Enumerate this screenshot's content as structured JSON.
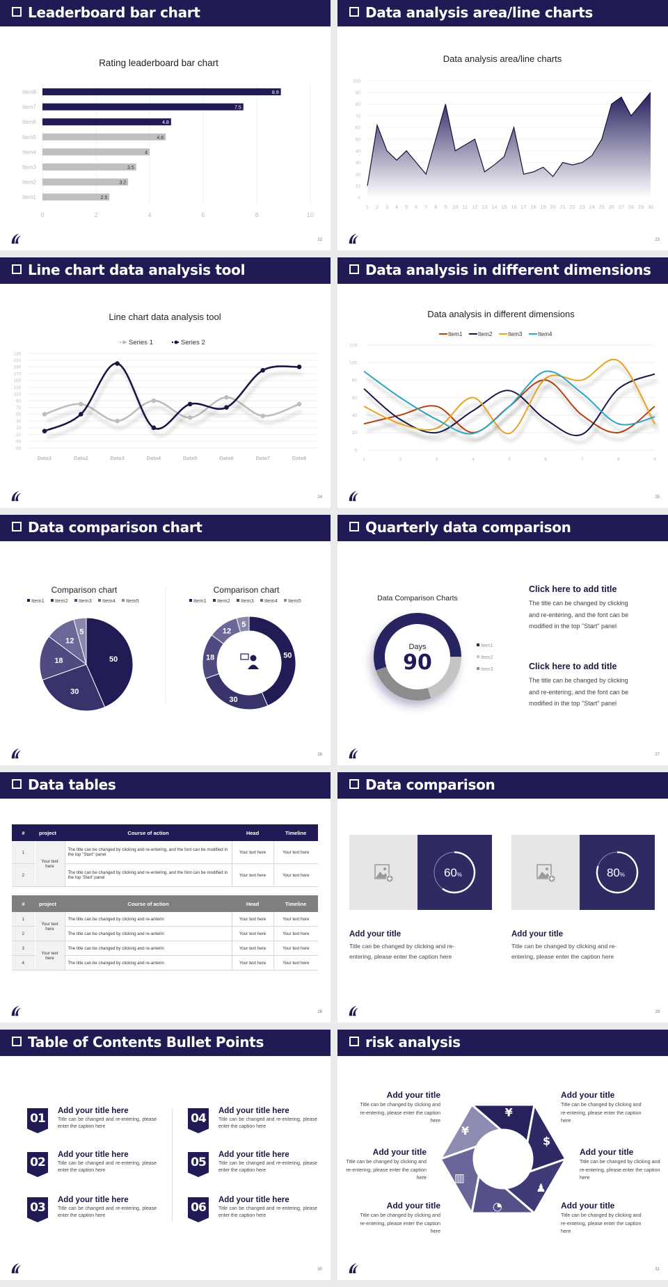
{
  "colors": {
    "navy": "#201b55",
    "gray_bar": "#bfbfbf",
    "box_navy": "#2e2a62",
    "box_gray": "#e6e4e5"
  },
  "slides": [
    {
      "title": "Leaderboard bar chart",
      "page": "22"
    },
    {
      "title": "Data analysis area/line charts",
      "page": "23"
    },
    {
      "title": "Line chart data analysis tool",
      "page": "24"
    },
    {
      "title": "Data analysis in different dimensions",
      "page": "25"
    },
    {
      "title": "Data comparison chart",
      "page": "26"
    },
    {
      "title": "Quarterly data comparison",
      "page": "27"
    },
    {
      "title": "Data tables",
      "page": "28"
    },
    {
      "title": "Data comparison",
      "page": "29"
    },
    {
      "title": "Table of Contents Bullet Points",
      "page": "30"
    },
    {
      "title": "risk analysis",
      "page": "31"
    }
  ],
  "chart_data": [
    {
      "type": "bar",
      "orientation": "horizontal",
      "title": "Rating leaderboard bar chart",
      "categories": [
        "Item1",
        "Item2",
        "Item3",
        "Item4",
        "Item5",
        "Item6",
        "Item7",
        "Item8"
      ],
      "values": [
        2.5,
        3.2,
        3.5,
        4,
        4.6,
        4.8,
        7.5,
        8.9
      ],
      "value_labels": [
        "2.5",
        "3.2",
        "3.5",
        "4",
        "4.6",
        "4.8",
        "7.5",
        "8.9"
      ],
      "colors": [
        "#bfbfbf",
        "#bfbfbf",
        "#bfbfbf",
        "#bfbfbf",
        "#bfbfbf",
        "#201b55",
        "#201b55",
        "#201b55"
      ],
      "xlim": [
        0,
        10
      ],
      "xticks": [
        "0",
        "2",
        "4",
        "6",
        "8",
        "10"
      ],
      "grid": true
    },
    {
      "type": "area",
      "title": "Data analysis area/line charts",
      "x": [
        "1",
        "2",
        "3",
        "4",
        "5",
        "6",
        "7",
        "8",
        "9",
        "10",
        "11",
        "12",
        "13",
        "14",
        "15",
        "16",
        "17",
        "18",
        "19",
        "20",
        "21",
        "22",
        "23",
        "24",
        "25",
        "26",
        "27",
        "28",
        "29",
        "30"
      ],
      "values": [
        10,
        62,
        40,
        32,
        40,
        30,
        20,
        50,
        80,
        40,
        45,
        50,
        22,
        28,
        35,
        60,
        20,
        22,
        26,
        18,
        30,
        28,
        30,
        36,
        50,
        80,
        86,
        70,
        80,
        90
      ],
      "ylim": [
        0,
        100
      ],
      "yticks": [
        "0",
        "10",
        "20",
        "30",
        "40",
        "50",
        "60",
        "70",
        "80",
        "90",
        "100"
      ],
      "color": "#201b55",
      "grid": true
    },
    {
      "type": "line",
      "smooth": true,
      "title": "Line chart data analysis tool",
      "categories": [
        "Data1",
        "Data2",
        "Data3",
        "Data4",
        "Data5",
        "Data6",
        "Data7",
        "Data8"
      ],
      "series": [
        {
          "name": "Series 1",
          "color": "#bdbdbd",
          "values": [
            50,
            80,
            30,
            90,
            40,
            100,
            45,
            80
          ]
        },
        {
          "name": "Series 2",
          "color": "#1a1745",
          "values": [
            0,
            50,
            200,
            10,
            80,
            70,
            180,
            190
          ]
        }
      ],
      "ylim": [
        -50,
        230
      ],
      "yticks": [
        "-50",
        "-30",
        "-10",
        "10",
        "30",
        "50",
        "70",
        "90",
        "110",
        "130",
        "150",
        "170",
        "190",
        "210",
        "230"
      ],
      "legend": "top",
      "grid": true
    },
    {
      "type": "line",
      "smooth": true,
      "title": "Data analysis in different dimensions",
      "categories": [
        "1",
        "2",
        "3",
        "4",
        "5",
        "6",
        "7",
        "8",
        "9"
      ],
      "series": [
        {
          "name": "Item1",
          "color": "#b8400f",
          "values": [
            30,
            40,
            50,
            20,
            50,
            80,
            40,
            20,
            50
          ]
        },
        {
          "name": "Item2",
          "color": "#1a1745",
          "values": [
            70,
            35,
            20,
            45,
            68,
            35,
            18,
            70,
            87
          ]
        },
        {
          "name": "Item3",
          "color": "#e9a21f",
          "values": [
            50,
            30,
            25,
            60,
            19,
            82,
            80,
            102,
            30
          ]
        },
        {
          "name": "Item4",
          "color": "#2aa6c2",
          "values": [
            90,
            60,
            35,
            19,
            50,
            90,
            65,
            30,
            38
          ]
        }
      ],
      "ylim": [
        0,
        120
      ],
      "yticks": [
        "0",
        "20",
        "40",
        "60",
        "80",
        "100",
        "120"
      ],
      "legend": "top",
      "grid": true
    },
    {
      "type": "pie",
      "title": "Comparison chart",
      "categories": [
        "Item1",
        "Item2",
        "Item3",
        "Item4",
        "Item5"
      ],
      "values": [
        50,
        30,
        18,
        12,
        5
      ],
      "colors": [
        "#221c56",
        "#38336b",
        "#4f4a80",
        "#6b6797",
        "#8b88ad"
      ],
      "legend": "top"
    },
    {
      "type": "pie",
      "variant": "donut",
      "title": "Comparison chart",
      "categories": [
        "Item1",
        "Item2",
        "Item3",
        "Item4",
        "Item5"
      ],
      "values": [
        50,
        30,
        18,
        12,
        5
      ],
      "colors": [
        "#221c56",
        "#38336b",
        "#4f4a80",
        "#6b6797",
        "#8b88ad"
      ],
      "legend": "top",
      "center_icon": "presenter-icon"
    },
    {
      "type": "pie",
      "variant": "donut",
      "title": "Data Comparison Charts",
      "categories": [
        "Item1",
        "Item2",
        "Item3"
      ],
      "values": [
        55,
        20,
        25
      ],
      "colors": [
        "#282361",
        "#c4c4c4",
        "#8c8c8c"
      ],
      "legend": "right",
      "center_label": "Days",
      "center_value": "90"
    }
  ],
  "quarterly": {
    "blocks": [
      {
        "title": "Click here to add title",
        "lines": [
          "The title can be changed by clicking",
          "and re-entering, and the font can be",
          "modified in the top \"Start\" panel"
        ]
      },
      {
        "title": "Click here to add title",
        "lines": [
          "The title can be changed by clicking",
          "and re-entering, and the font can be",
          "modified in the top \"Start\" panel"
        ]
      }
    ]
  },
  "tables": {
    "headers": [
      "#",
      "project",
      "Course of action",
      "Head",
      "Timeline"
    ],
    "table1": {
      "project": "Your text here",
      "rows": [
        {
          "num": "1",
          "action": "The title can be changed by clicking and re-entering, and the font can be modified in the top \"Start\" panel",
          "head": "Your text here",
          "timeline": "Your text here"
        },
        {
          "num": "2",
          "action": "The title can be changed by clicking and re-entering, and the font can be modified in the top 'Start' panel",
          "head": "Your text here",
          "timeline": "Your text here"
        }
      ]
    },
    "table2": {
      "projects": [
        "Your text here",
        "Your text here"
      ],
      "rows": [
        {
          "num": "1",
          "action": "The title can be changed by clicking and re-anterin",
          "head": "Your text here",
          "timeline": "Your text here"
        },
        {
          "num": "2",
          "action": "The title can be changed by clicking and re-anterin",
          "head": "Your text here",
          "timeline": "Your text here"
        },
        {
          "num": "3",
          "action": "The title can be changed by clicking and re-anterin",
          "head": "Your text here",
          "timeline": "Your text here"
        },
        {
          "num": "4",
          "action": "The title can be changed by clicking and re-anterin",
          "head": "Your text here",
          "timeline": "Your text here"
        }
      ]
    }
  },
  "comparison": {
    "cards": [
      {
        "percent": 60,
        "value": "60",
        "unit": "%",
        "image_icon": "image-add-icon",
        "title": "Add your title",
        "lines": [
          "Title can be changed by clicking and re-",
          "entering, please enter the caption here"
        ]
      },
      {
        "percent": 80,
        "value": "80",
        "unit": "%",
        "image_icon": "image-add-icon",
        "title": "Add your title",
        "lines": [
          "Title can be changed by clicking and re-",
          "entering, please enter the caption here"
        ]
      }
    ]
  },
  "toc": {
    "items": [
      {
        "num": "01",
        "title": "Add your title here",
        "text": "Title can be changed and re-entering, please enter the caption here"
      },
      {
        "num": "02",
        "title": "Add your title here",
        "text": "Title can be changed and re-entering, please enter the caption here"
      },
      {
        "num": "03",
        "title": "Add your title here",
        "text": "Title can be changed and re-entering, please enter the caption here"
      },
      {
        "num": "04",
        "title": "Add your title here",
        "text": "Title can be changed and re-entering, please enter the caption here"
      },
      {
        "num": "05",
        "title": "Add your title here",
        "text": "Title can be changed and re-entering, please enter the caption here"
      },
      {
        "num": "06",
        "title": "Add your title here",
        "text": "Title can be changed and re-entering, please enter the caption here"
      }
    ]
  },
  "risk": {
    "items": [
      {
        "title": "Add your title",
        "text": "Title can be changed by clicking and re-entering, please enter the caption here"
      },
      {
        "title": "Add your title",
        "text": "Title can be changed by clicking and re-entering, please enter the caption here"
      },
      {
        "title": "Add your title",
        "text": "Title can be changed by clicking and re-entering, please enter the caption here"
      },
      {
        "title": "Add your title",
        "text": "Title can be changed by clicking and re-entering, please enter the caption here"
      },
      {
        "title": "Add your title",
        "text": "Title can be changed by clicking and re-entering, please enter the caption here"
      },
      {
        "title": "Add your title",
        "text": "Title can be changed by clicking and re-entering, please enter the caption here"
      }
    ],
    "segment_icons": [
      "money-bag-icon",
      "coins-icon",
      "users-icon",
      "pie-chart-icon",
      "building-icon",
      "hand-money-icon"
    ],
    "segment_glyphs": [
      "¥",
      "$",
      "♟",
      "◔",
      "▥",
      "¥"
    ],
    "segment_colors": [
      "#27225e",
      "#2f2a66",
      "#3f3a78",
      "#54508a",
      "#6a6699",
      "#8e8bb2"
    ]
  }
}
